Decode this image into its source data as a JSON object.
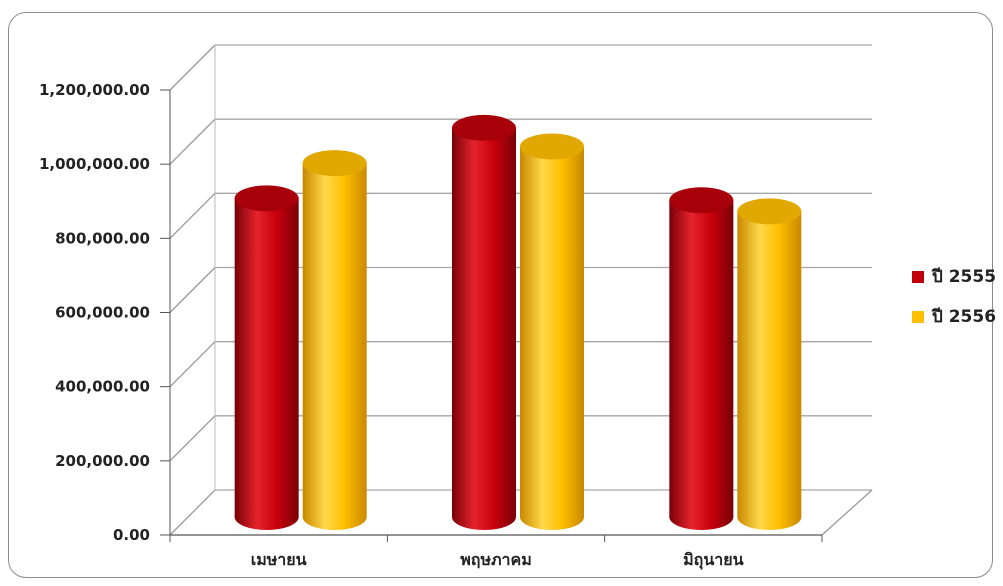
{
  "chart_data": {
    "type": "bar",
    "title": "",
    "xlabel": "",
    "ylabel": "",
    "categories": [
      "เมษายน",
      "พฤษภาคม",
      "มิถุนายน"
    ],
    "series": [
      {
        "name": "ปี 2555",
        "values": [
          870000,
          1060000,
          865000
        ],
        "color": "#c0000a"
      },
      {
        "name": "ปี 2556",
        "values": [
          965000,
          1010000,
          835000
        ],
        "color": "#ffc000"
      }
    ],
    "ylim": [
      0,
      1200000
    ],
    "ytick_labels": [
      "0.00",
      "200,000.00",
      "400,000.00",
      "600,000.00",
      "800,000.00",
      "1,000,000.00",
      "1,200,000.00"
    ],
    "grid": true,
    "legend": "right",
    "style": "3d-cylinder"
  }
}
